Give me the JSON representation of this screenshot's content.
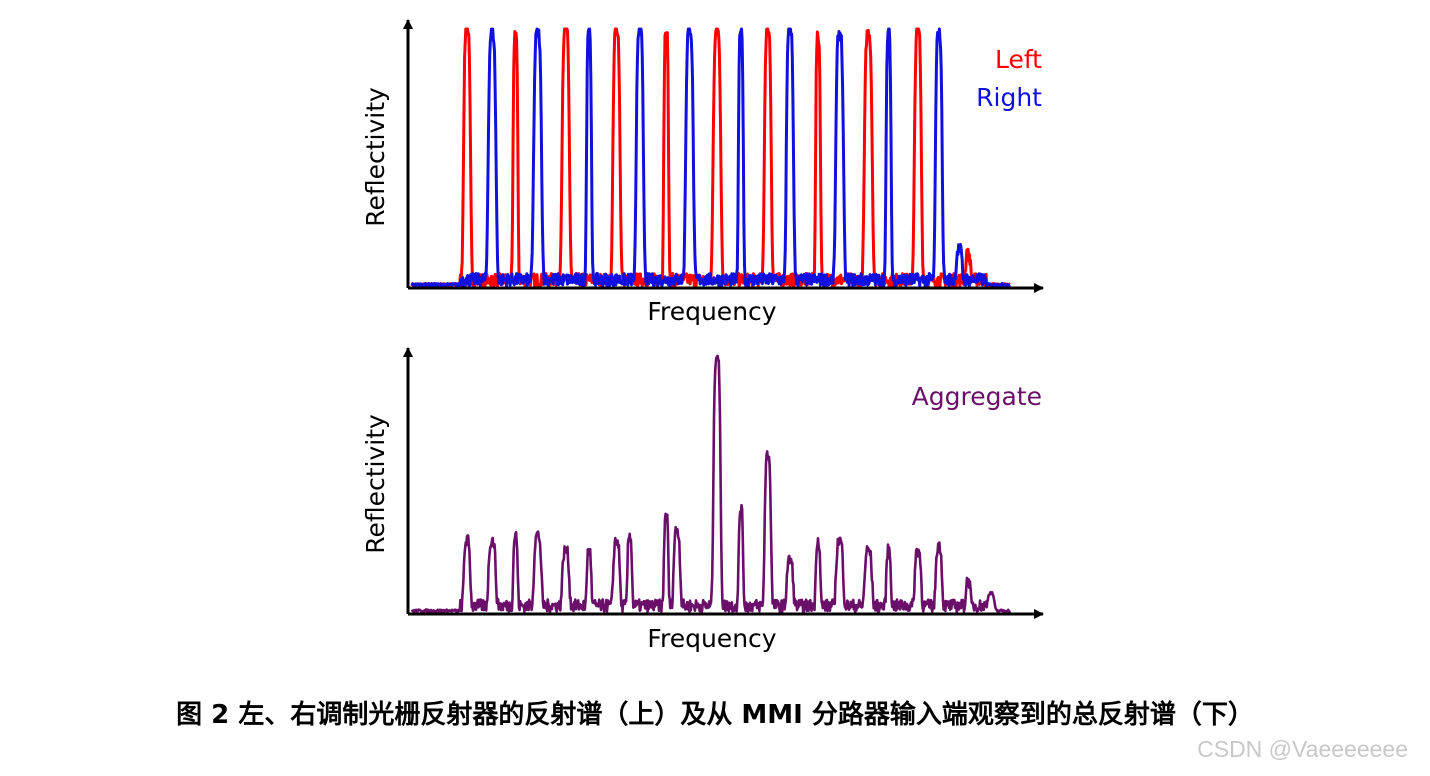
{
  "colors": {
    "left": "#ff0000",
    "right": "#1010e0",
    "aggregate": "#6a0f6a",
    "axis": "#000000"
  },
  "chart_data": [
    {
      "type": "line",
      "xlabel": "Frequency",
      "ylabel": "Reflectivity",
      "xlim": [
        0,
        100
      ],
      "ylim": [
        0,
        1
      ],
      "legend": "top-right",
      "series": [
        {
          "name": "Left",
          "color": "#ff0000",
          "peaks_x": [
            9.2,
            17.3,
            25.7,
            34.2,
            42.5,
            51.0,
            59.5,
            67.9,
            76.3,
            84.6,
            93.0
          ],
          "peaks_y": [
            1.0,
            0.98,
            1.0,
            1.0,
            1.0,
            1.0,
            1.0,
            0.96,
            0.98,
            1.0,
            0.1
          ]
        },
        {
          "name": "Right",
          "color": "#1010e0",
          "peaks_x": [
            13.4,
            21.0,
            29.6,
            38.1,
            46.4,
            55.0,
            63.2,
            71.5,
            79.7,
            88.1,
            91.5
          ],
          "peaks_y": [
            0.98,
            0.98,
            1.0,
            1.0,
            1.0,
            1.0,
            1.0,
            0.98,
            0.98,
            0.98,
            0.12
          ]
        }
      ]
    },
    {
      "type": "line",
      "xlabel": "Frequency",
      "ylabel": "Reflectivity",
      "xlim": [
        0,
        100
      ],
      "ylim": [
        0,
        1
      ],
      "legend": "top-right",
      "series": [
        {
          "name": "Aggregate",
          "color": "#6a0f6a",
          "peaks_x": [
            9.2,
            13.4,
            17.3,
            21.0,
            25.7,
            29.6,
            34.2,
            36.4,
            42.5,
            44.3,
            51.0,
            55.0,
            59.5,
            63.2,
            67.9,
            71.5,
            76.3,
            79.7,
            84.6,
            88.1,
            93.0,
            96.8
          ],
          "peaks_y": [
            0.26,
            0.26,
            0.28,
            0.28,
            0.22,
            0.22,
            0.26,
            0.28,
            0.36,
            0.3,
            1.0,
            0.38,
            0.6,
            0.18,
            0.26,
            0.26,
            0.22,
            0.22,
            0.22,
            0.24,
            0.1,
            0.07
          ]
        }
      ]
    }
  ],
  "caption": "图 2  左、右调制光栅反射器的反射谱（上）及从 MMI 分路器输入端观察到的总反射谱（下）",
  "watermark": "CSDN @Vaeeeeeee"
}
